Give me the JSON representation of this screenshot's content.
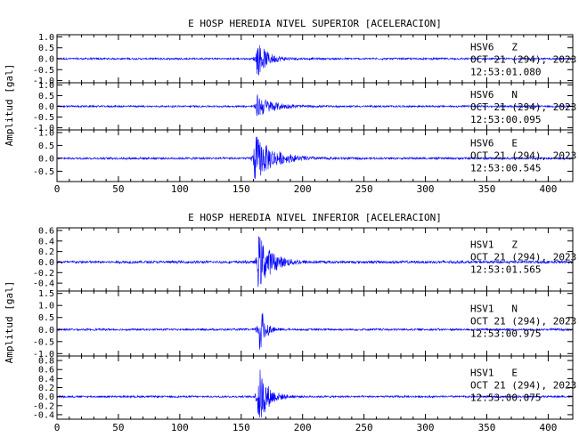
{
  "chart_data": [
    {
      "type": "line",
      "title": "E HOSP HEREDIA NIVEL SUPERIOR [ACELERACION]",
      "ylabel": "Amplitud [gal]",
      "xlabel": "",
      "x_ticks": [
        "0",
        "50",
        "100",
        "150",
        "200",
        "250",
        "300",
        "350",
        "400"
      ],
      "xlim": [
        0,
        420
      ],
      "line_color": "#0000ff",
      "panels": [
        {
          "station": "HSV6",
          "component": "Z",
          "date": "OCT 21 (294), 2023",
          "time": "12:53:01.080",
          "ylim": [
            -1.1,
            1.1
          ],
          "y_ticks": [
            "1.0",
            "0.5",
            "0.0",
            "-0.5",
            "-1.0"
          ],
          "y_tick_values": [
            1.0,
            0.5,
            0.0,
            -0.5,
            -1.0
          ],
          "noise": 0.05,
          "bursts": [
            {
              "t0": 162,
              "peak": 0.95,
              "decay": 8
            }
          ]
        },
        {
          "station": "HSV6",
          "component": "N",
          "date": "OCT 21 (294), 2023",
          "time": "12:53:00.095",
          "ylim": [
            -1.1,
            1.1
          ],
          "y_ticks": [
            "1.0",
            "0.5",
            "0.0",
            "-0.5",
            "-1.0"
          ],
          "y_tick_values": [
            1.0,
            0.5,
            0.0,
            -0.5,
            -1.0
          ],
          "noise": 0.05,
          "bursts": [
            {
              "t0": 162,
              "peak": 0.6,
              "decay": 12
            }
          ]
        },
        {
          "station": "HSV6",
          "component": "E",
          "date": "OCT 21 (294), 2023",
          "time": "12:53:00.545",
          "ylim": [
            -0.9,
            1.1
          ],
          "y_ticks": [
            "1.0",
            "0.5",
            "0.0",
            "-0.5"
          ],
          "y_tick_values": [
            1.0,
            0.5,
            0.0,
            -0.5
          ],
          "noise": 0.05,
          "bursts": [
            {
              "t0": 160,
              "peak": 1.0,
              "decay": 14
            }
          ]
        }
      ]
    },
    {
      "type": "line",
      "title": "E HOSP HEREDIA NIVEL INFERIOR [ACELERACION]",
      "ylabel": "Amplitud [gal]",
      "xlabel": "",
      "x_ticks": [
        "0",
        "50",
        "100",
        "150",
        "200",
        "250",
        "300",
        "350",
        "400"
      ],
      "xlim": [
        0,
        420
      ],
      "line_color": "#0000ff",
      "panels": [
        {
          "station": "HSV1",
          "component": "Z",
          "date": "OCT 21 (294), 2023",
          "time": "12:53:01.565",
          "ylim": [
            -0.55,
            0.65
          ],
          "y_ticks": [
            "0.6",
            "0.4",
            "0.2",
            "0.0",
            "-0.2",
            "-0.4"
          ],
          "y_tick_values": [
            0.6,
            0.4,
            0.2,
            0.0,
            -0.2,
            -0.4
          ],
          "noise": 0.03,
          "bursts": [
            {
              "t0": 163,
              "peak": 0.6,
              "decay": 10
            }
          ]
        },
        {
          "station": "HSV1",
          "component": "N",
          "date": "OCT 21 (294), 2023",
          "time": "12:53:00.975",
          "ylim": [
            -1.1,
            1.6
          ],
          "y_ticks": [
            "1.5",
            "1.0",
            "0.5",
            "0.0",
            "-0.5",
            "-1.0"
          ],
          "y_tick_values": [
            1.5,
            1.0,
            0.5,
            0.0,
            -0.5,
            -1.0
          ],
          "noise": 0.05,
          "bursts": [
            {
              "t0": 164,
              "peak": 1.6,
              "decay": 4
            }
          ]
        },
        {
          "station": "HSV1",
          "component": "E",
          "date": "OCT 21 (294), 2023",
          "time": "12:53:00.075",
          "ylim": [
            -0.5,
            0.9
          ],
          "y_ticks": [
            "0.8",
            "0.6",
            "0.4",
            "0.2",
            "0.0",
            "-0.2",
            "-0.4"
          ],
          "y_tick_values": [
            0.8,
            0.6,
            0.4,
            0.2,
            0.0,
            -0.2,
            -0.4
          ],
          "noise": 0.025,
          "bursts": [
            {
              "t0": 163,
              "peak": 0.85,
              "decay": 7
            }
          ]
        }
      ]
    }
  ]
}
